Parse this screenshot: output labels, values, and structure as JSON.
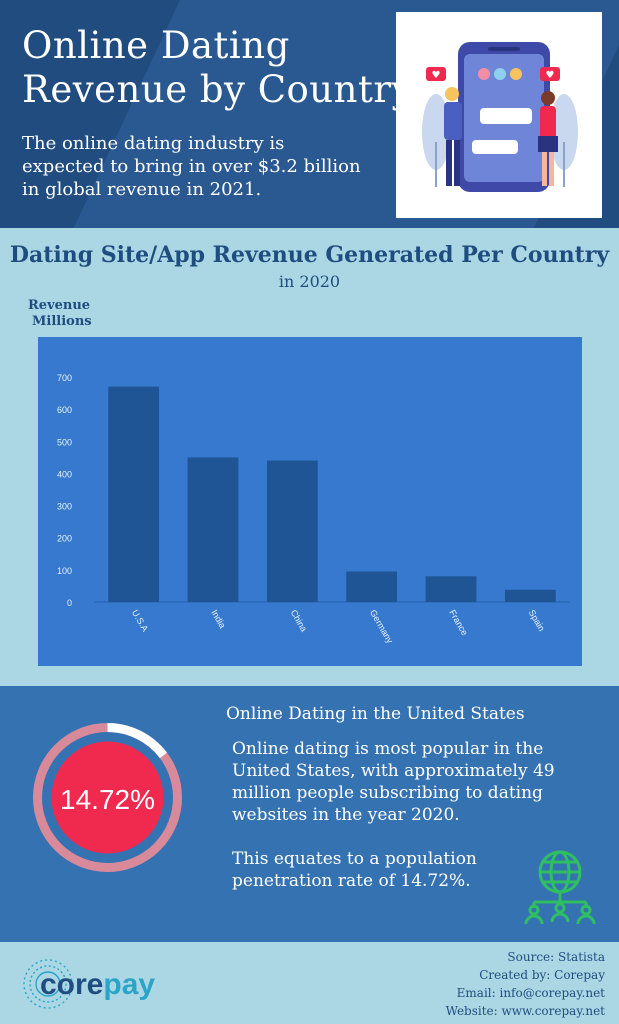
{
  "header": {
    "title_line1": "Online Dating",
    "title_line2": "Revenue by Country",
    "subtitle": "The online dating industry is expected to bring in over $3.2 billion in global revenue in 2021."
  },
  "chart_section": {
    "title": "Dating Site/App Revenue Generated Per Country",
    "subtitle": "in 2020",
    "ylabel_line1": "Revenue",
    "ylabel_line2": "Millions"
  },
  "chart_data": {
    "type": "bar",
    "title": "Dating Site/App Revenue Generated Per Country",
    "subtitle": "in 2020",
    "xlabel": "",
    "ylabel": "Revenue Millions",
    "categories": [
      "U.S.A",
      "India",
      "China",
      "Germany",
      "France",
      "Spain"
    ],
    "values": [
      670,
      450,
      440,
      95,
      80,
      38
    ],
    "ylim": [
      0,
      700
    ],
    "yticks": [
      0,
      100,
      200,
      300,
      400,
      500,
      600,
      700
    ],
    "grid": false,
    "colors": {
      "bar": "#1f5594",
      "plot_bg": "#3679cf",
      "tick_text": "#e8f0fa"
    }
  },
  "us_section": {
    "title": "Online Dating in the United States",
    "paragraph1": "Online dating is most popular in the United States, with approximately 49 million people subscribing to dating websites in the year 2020.",
    "paragraph2": "This equates to a population penetration rate of 14.72%.",
    "rate_label": "14.72%",
    "rate_value": 14.72,
    "colors": {
      "ring_outer": "#d98a9a",
      "ring_inner_fill": "#f0294f",
      "ring_track": "#ffffff"
    },
    "icon": "globe-network-icon"
  },
  "footer": {
    "logo_text_a": "core",
    "logo_text_b": "pay",
    "source": "Source: Statista",
    "created_by": "Created by: Corepay",
    "email": "Email: info@corepay.net",
    "website": "Website: www.corepay.net"
  }
}
